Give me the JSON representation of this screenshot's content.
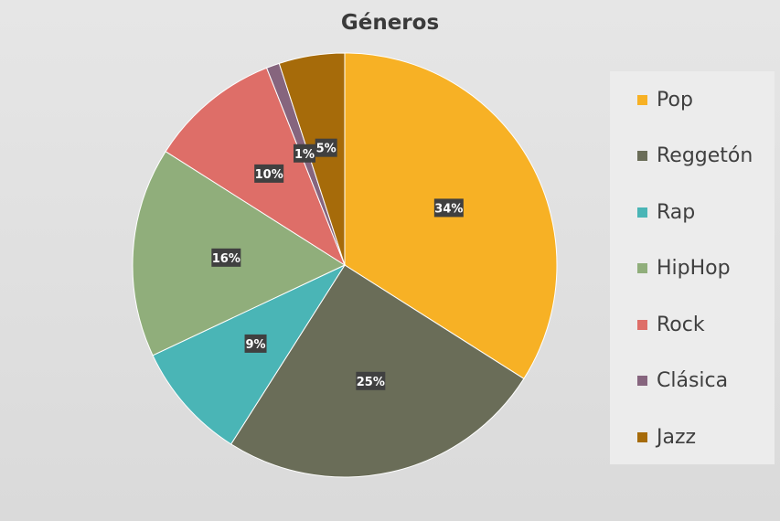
{
  "chart_data": {
    "type": "pie",
    "title": "Géneros",
    "categories": [
      "Pop",
      "Reggetón",
      "Rap",
      "HipHop",
      "Rock",
      "Clásica",
      "Jazz"
    ],
    "values": [
      34,
      25,
      9,
      16,
      10,
      1,
      5
    ],
    "data_labels": [
      "34%",
      "25%",
      "9%",
      "16%",
      "10%",
      "1%",
      "5%"
    ],
    "colors": [
      "#F7B125",
      "#6A6D58",
      "#4AB5B6",
      "#90AE7B",
      "#DE6E68",
      "#86657E",
      "#A66B0A"
    ],
    "legend_position": "right"
  }
}
